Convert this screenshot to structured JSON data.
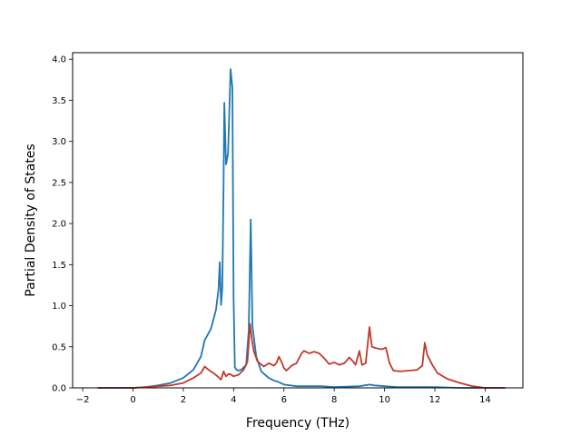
{
  "chart_data": {
    "type": "line",
    "title": "",
    "xlabel": "Frequency (THz)",
    "ylabel": "Partial Density of States",
    "xlim": [
      -2.4,
      15.5
    ],
    "ylim": [
      0,
      4.08
    ],
    "xticks": [
      -2,
      0,
      2,
      4,
      6,
      8,
      10,
      12,
      14
    ],
    "xtick_labels": [
      "−2",
      "0",
      "2",
      "4",
      "6",
      "8",
      "10",
      "12",
      "14"
    ],
    "yticks": [
      0,
      0.5,
      1.0,
      1.5,
      2.0,
      2.5,
      3.0,
      3.5,
      4.0
    ],
    "ytick_labels": [
      "0.0",
      "0.5",
      "1.0",
      "1.5",
      "2.0",
      "2.5",
      "3.0",
      "3.5",
      "4.0"
    ],
    "grid": false,
    "legend": "none",
    "series": [
      {
        "color": "#1f77b4",
        "points": [
          [
            -1.4,
            0
          ],
          [
            0,
            0
          ],
          [
            0.5,
            0.01
          ],
          [
            1.0,
            0.03
          ],
          [
            1.5,
            0.06
          ],
          [
            2.0,
            0.12
          ],
          [
            2.4,
            0.22
          ],
          [
            2.7,
            0.38
          ],
          [
            2.85,
            0.58
          ],
          [
            3.1,
            0.72
          ],
          [
            3.3,
            0.95
          ],
          [
            3.4,
            1.2
          ],
          [
            3.45,
            1.53
          ],
          [
            3.5,
            1.01
          ],
          [
            3.55,
            1.22
          ],
          [
            3.6,
            2.5
          ],
          [
            3.63,
            3.47
          ],
          [
            3.7,
            2.72
          ],
          [
            3.78,
            2.85
          ],
          [
            3.88,
            3.88
          ],
          [
            3.95,
            3.65
          ],
          [
            4.0,
            1.1
          ],
          [
            4.05,
            0.25
          ],
          [
            4.15,
            0.21
          ],
          [
            4.3,
            0.22
          ],
          [
            4.5,
            0.28
          ],
          [
            4.6,
            0.7
          ],
          [
            4.68,
            2.05
          ],
          [
            4.75,
            0.75
          ],
          [
            4.9,
            0.38
          ],
          [
            5.1,
            0.2
          ],
          [
            5.4,
            0.12
          ],
          [
            5.6,
            0.09
          ],
          [
            5.8,
            0.07
          ],
          [
            6.0,
            0.04
          ],
          [
            6.5,
            0.02
          ],
          [
            7.0,
            0.02
          ],
          [
            7.5,
            0.02
          ],
          [
            8.0,
            0.01
          ],
          [
            9.0,
            0.02
          ],
          [
            9.4,
            0.04
          ],
          [
            9.6,
            0.03
          ],
          [
            10.0,
            0.02
          ],
          [
            10.5,
            0.01
          ],
          [
            11.6,
            0.01
          ],
          [
            12.0,
            0.01
          ],
          [
            13.0,
            0
          ],
          [
            14.8,
            0
          ]
        ]
      },
      {
        "color": "#c0392b",
        "points": [
          [
            -1.4,
            0
          ],
          [
            0,
            0
          ],
          [
            0.5,
            0.01
          ],
          [
            1.0,
            0.02
          ],
          [
            1.5,
            0.03
          ],
          [
            2.0,
            0.06
          ],
          [
            2.4,
            0.12
          ],
          [
            2.7,
            0.18
          ],
          [
            2.85,
            0.26
          ],
          [
            3.0,
            0.22
          ],
          [
            3.2,
            0.18
          ],
          [
            3.4,
            0.13
          ],
          [
            3.5,
            0.1
          ],
          [
            3.6,
            0.2
          ],
          [
            3.7,
            0.14
          ],
          [
            3.8,
            0.17
          ],
          [
            3.9,
            0.16
          ],
          [
            4.0,
            0.14
          ],
          [
            4.2,
            0.16
          ],
          [
            4.4,
            0.22
          ],
          [
            4.55,
            0.32
          ],
          [
            4.65,
            0.78
          ],
          [
            4.72,
            0.6
          ],
          [
            4.8,
            0.45
          ],
          [
            4.95,
            0.32
          ],
          [
            5.2,
            0.26
          ],
          [
            5.4,
            0.3
          ],
          [
            5.6,
            0.27
          ],
          [
            5.7,
            0.3
          ],
          [
            5.8,
            0.38
          ],
          [
            5.9,
            0.32
          ],
          [
            6.0,
            0.24
          ],
          [
            6.1,
            0.21
          ],
          [
            6.3,
            0.27
          ],
          [
            6.5,
            0.3
          ],
          [
            6.7,
            0.42
          ],
          [
            6.8,
            0.45
          ],
          [
            7.0,
            0.42
          ],
          [
            7.2,
            0.44
          ],
          [
            7.4,
            0.42
          ],
          [
            7.6,
            0.36
          ],
          [
            7.8,
            0.29
          ],
          [
            8.0,
            0.31
          ],
          [
            8.2,
            0.28
          ],
          [
            8.4,
            0.3
          ],
          [
            8.6,
            0.37
          ],
          [
            8.75,
            0.32
          ],
          [
            8.85,
            0.28
          ],
          [
            9.0,
            0.45
          ],
          [
            9.1,
            0.28
          ],
          [
            9.25,
            0.3
          ],
          [
            9.4,
            0.74
          ],
          [
            9.5,
            0.5
          ],
          [
            9.7,
            0.48
          ],
          [
            9.9,
            0.47
          ],
          [
            10.05,
            0.49
          ],
          [
            10.2,
            0.3
          ],
          [
            10.35,
            0.21
          ],
          [
            10.6,
            0.2
          ],
          [
            11.0,
            0.21
          ],
          [
            11.3,
            0.22
          ],
          [
            11.5,
            0.27
          ],
          [
            11.6,
            0.55
          ],
          [
            11.7,
            0.4
          ],
          [
            11.9,
            0.28
          ],
          [
            12.1,
            0.18
          ],
          [
            12.5,
            0.11
          ],
          [
            13.0,
            0.06
          ],
          [
            13.5,
            0.02
          ],
          [
            14.0,
            0
          ],
          [
            14.8,
            0
          ]
        ]
      }
    ]
  }
}
